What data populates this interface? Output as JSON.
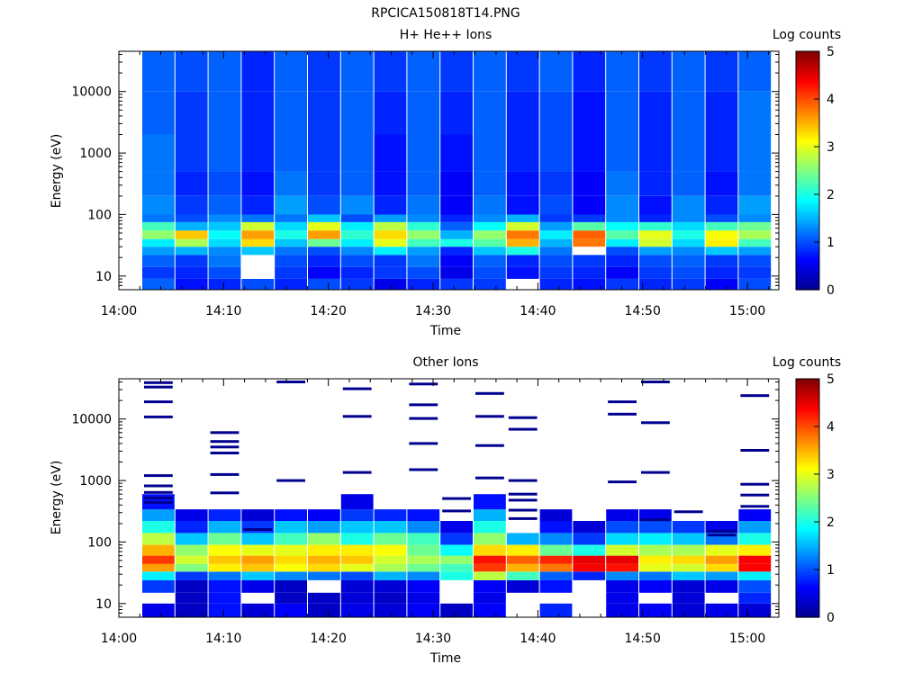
{
  "page_title": "RPCICA150818T14.PNG",
  "colormap": [
    "#00008f",
    "#0000ff",
    "#0080ff",
    "#00ffff",
    "#80ff80",
    "#ffff00",
    "#ff8000",
    "#ff0000",
    "#800000"
  ],
  "chart_data": [
    {
      "type": "heatmap",
      "title": "H+ He++ Ions",
      "xlabel": "Time",
      "ylabel": "Energy (eV)",
      "yscale": "log",
      "xlim": [
        "14:00",
        "15:03"
      ],
      "ylim": [
        6,
        45000
      ],
      "x_ticks": [
        "14:00",
        "14:10",
        "14:20",
        "14:30",
        "14:40",
        "14:50",
        "15:00"
      ],
      "y_ticks": [
        "10",
        "100",
        "1000",
        "10000"
      ],
      "colorbar": {
        "label": "Log counts",
        "ticks": [
          "0",
          "1",
          "2",
          "3",
          "4",
          "5"
        ],
        "range": [
          0,
          5
        ]
      },
      "time_bins": [
        "14:02:15",
        "14:05:30",
        "14:08:45",
        "14:12:00",
        "14:15:15",
        "14:18:30",
        "14:21:45",
        "14:25:00",
        "14:28:15",
        "14:31:30",
        "14:34:45",
        "14:38:00",
        "14:41:15",
        "14:44:30",
        "14:47:45",
        "14:51:00",
        "14:54:15",
        "14:57:30",
        "15:00:45"
      ],
      "energy_bands_eV": [
        {
          "energy": [
            6,
            9
          ],
          "values": [
            1.1,
            0.7,
            0.8,
            1.0,
            0.8,
            1.0,
            0.9,
            0.5,
            0.8,
            0.9,
            0.9,
            null,
            0.8,
            0.7,
            0.9,
            0.8,
            0.9,
            0.6,
            1.0
          ]
        },
        {
          "energy": [
            9,
            14
          ],
          "values": [
            0.9,
            0.8,
            1.0,
            null,
            0.9,
            0.6,
            0.8,
            0.9,
            1.0,
            0.5,
            1.0,
            0.7,
            0.9,
            0.8,
            0.6,
            0.9,
            1.0,
            0.8,
            0.9
          ]
        },
        {
          "energy": [
            14,
            22
          ],
          "values": [
            1.1,
            0.9,
            1.2,
            null,
            1.0,
            0.8,
            1.0,
            0.9,
            1.2,
            0.6,
            1.1,
            0.8,
            1.0,
            0.9,
            0.8,
            1.0,
            1.1,
            0.9,
            1.0
          ]
        },
        {
          "energy": [
            22,
            30
          ],
          "values": [
            1.4,
            1.5,
            1.3,
            1.6,
            1.2,
            1.0,
            1.3,
            1.8,
            1.4,
            0.8,
            1.6,
            2.0,
            1.2,
            null,
            1.0,
            1.4,
            1.3,
            1.6,
            1.4
          ]
        },
        {
          "energy": [
            30,
            40
          ],
          "values": [
            1.8,
            2.7,
            1.7,
            3.3,
            1.6,
            2.4,
            1.8,
            3.0,
            2.2,
            2.0,
            2.3,
            3.5,
            1.5,
            3.8,
            1.8,
            2.9,
            1.7,
            3.2,
            2.2
          ]
        },
        {
          "energy": [
            40,
            55
          ],
          "values": [
            2.6,
            3.4,
            1.9,
            3.6,
            2.0,
            3.6,
            2.1,
            3.3,
            2.6,
            1.5,
            2.6,
            3.8,
            1.8,
            3.9,
            2.3,
            3.0,
            2.0,
            3.1,
            2.7
          ]
        },
        {
          "energy": [
            55,
            75
          ],
          "values": [
            2.2,
            1.5,
            1.6,
            2.9,
            1.7,
            3.0,
            1.8,
            2.8,
            2.1,
            1.1,
            1.9,
            2.9,
            1.4,
            2.3,
            1.9,
            2.1,
            1.7,
            2.2,
            2.4
          ]
        },
        {
          "energy": [
            75,
            100
          ],
          "values": [
            1.2,
            1.0,
            1.3,
            1.2,
            1.2,
            1.6,
            1.0,
            1.4,
            1.3,
            0.8,
            1.3,
            1.5,
            0.9,
            0.9,
            1.3,
            0.8,
            1.3,
            1.0,
            1.3
          ]
        },
        {
          "energy": [
            100,
            200
          ],
          "values": [
            1.3,
            0.9,
            1.1,
            0.8,
            1.4,
            1.0,
            1.3,
            0.8,
            1.2,
            0.6,
            1.2,
            0.7,
            1.0,
            0.6,
            1.3,
            0.7,
            1.3,
            0.8,
            1.4
          ]
        },
        {
          "energy": [
            200,
            500
          ],
          "values": [
            1.2,
            0.8,
            1.0,
            0.7,
            1.2,
            0.9,
            1.1,
            0.7,
            1.1,
            0.6,
            1.1,
            0.7,
            0.9,
            0.6,
            1.2,
            0.8,
            1.1,
            0.7,
            1.2
          ]
        },
        {
          "energy": [
            500,
            2000
          ],
          "values": [
            1.2,
            0.9,
            1.1,
            0.8,
            1.1,
            0.9,
            1.1,
            0.7,
            1.1,
            0.7,
            1.1,
            0.8,
            1.0,
            0.7,
            1.1,
            0.8,
            1.1,
            0.8,
            1.2
          ]
        },
        {
          "energy": [
            2000,
            10000
          ],
          "values": [
            1.1,
            0.9,
            1.1,
            0.8,
            1.1,
            0.9,
            1.1,
            0.8,
            1.1,
            0.8,
            1.1,
            0.8,
            1.0,
            0.7,
            1.1,
            0.8,
            1.1,
            0.8,
            1.2
          ]
        },
        {
          "energy": [
            10000,
            45000
          ],
          "values": [
            1.1,
            1.0,
            1.1,
            0.8,
            1.1,
            0.9,
            1.1,
            0.9,
            1.1,
            0.9,
            1.1,
            0.9,
            1.1,
            0.8,
            1.1,
            0.9,
            1.1,
            0.9,
            1.1
          ]
        }
      ]
    },
    {
      "type": "heatmap",
      "title": "Other Ions",
      "xlabel": "Time",
      "ylabel": "Energy (eV)",
      "yscale": "log",
      "xlim": [
        "14:00",
        "15:03"
      ],
      "ylim": [
        6,
        45000
      ],
      "x_ticks": [
        "14:00",
        "14:10",
        "14:20",
        "14:30",
        "14:40",
        "14:50",
        "15:00"
      ],
      "y_ticks": [
        "10",
        "100",
        "1000",
        "10000"
      ],
      "colorbar": {
        "label": "Log counts",
        "ticks": [
          "0",
          "1",
          "2",
          "3",
          "4",
          "5"
        ],
        "range": [
          0,
          5
        ]
      },
      "time_bins": [
        "14:02:15",
        "14:05:30",
        "14:08:45",
        "14:12:00",
        "14:15:15",
        "14:18:30",
        "14:21:45",
        "14:25:00",
        "14:28:15",
        "14:31:30",
        "14:34:45",
        "14:38:00",
        "14:41:15",
        "14:44:30",
        "14:47:45",
        "14:51:00",
        "14:54:15",
        "14:57:30",
        "15:00:45"
      ],
      "energy_bands_eV": [
        {
          "energy": [
            6,
            10
          ],
          "values": [
            0.5,
            0.3,
            0.7,
            0.4,
            0.6,
            0.3,
            0.5,
            0.4,
            0.6,
            0.3,
            0.6,
            null,
            0.8,
            null,
            0.5,
            0.6,
            0.4,
            0.5,
            0.4
          ]
        },
        {
          "energy": [
            10,
            15
          ],
          "values": [
            null,
            0.3,
            0.7,
            null,
            0.3,
            0.3,
            0.4,
            0.3,
            0.5,
            null,
            0.5,
            null,
            null,
            null,
            0.5,
            null,
            0.4,
            null,
            0.8
          ]
        },
        {
          "energy": [
            15,
            24
          ],
          "values": [
            0.9,
            0.3,
            0.7,
            0.5,
            0.3,
            null,
            0.4,
            0.4,
            0.6,
            null,
            0.6,
            0.4,
            0.7,
            null,
            0.5,
            0.6,
            0.4,
            0.5,
            1.0
          ]
        },
        {
          "energy": [
            24,
            33
          ],
          "values": [
            1.8,
            0.9,
            1.2,
            1.6,
            1.3,
            1.2,
            1.0,
            1.5,
            1.3,
            2.0,
            2.8,
            2.2,
            1.1,
            0.8,
            1.3,
            1.2,
            1.6,
            1.4,
            1.8
          ]
        },
        {
          "energy": [
            33,
            44
          ],
          "values": [
            3.6,
            2.5,
            3.2,
            3.4,
            3.1,
            3.3,
            3.0,
            2.7,
            2.4,
            2.2,
            4.1,
            3.5,
            3.8,
            4.4,
            4.3,
            3.0,
            2.9,
            3.3,
            4.4
          ]
        },
        {
          "energy": [
            44,
            60
          ],
          "values": [
            4.1,
            2.9,
            3.4,
            3.6,
            3.3,
            3.5,
            3.4,
            2.9,
            2.7,
            2.6,
            4.3,
            3.9,
            4.2,
            4.5,
            4.5,
            3.2,
            3.3,
            3.6,
            4.4
          ]
        },
        {
          "energy": [
            60,
            90
          ],
          "values": [
            3.5,
            2.6,
            3.1,
            3.0,
            3.0,
            3.2,
            3.2,
            3.1,
            2.4,
            1.9,
            3.3,
            3.2,
            2.4,
            2.0,
            2.9,
            2.7,
            2.7,
            3.0,
            3.2
          ]
        },
        {
          "energy": [
            90,
            140
          ],
          "values": [
            2.8,
            1.6,
            2.4,
            1.6,
            2.2,
            2.6,
            2.0,
            2.4,
            2.2,
            0.9,
            2.6,
            1.5,
            1.3,
            0.9,
            1.7,
            1.8,
            1.6,
            1.2,
            2.0
          ]
        },
        {
          "energy": [
            140,
            220
          ],
          "values": [
            2.0,
            0.8,
            1.5,
            0.9,
            1.6,
            1.4,
            1.6,
            1.6,
            1.3,
            0.5,
            2.0,
            null,
            0.7,
            0.4,
            1.0,
            1.0,
            0.9,
            0.5,
            1.4
          ]
        },
        {
          "energy": [
            220,
            340
          ],
          "values": [
            1.4,
            0.5,
            0.8,
            0.4,
            0.7,
            0.6,
            0.9,
            0.8,
            0.7,
            null,
            1.5,
            null,
            0.4,
            null,
            0.5,
            0.5,
            null,
            null,
            0.6
          ]
        },
        {
          "energy": [
            340,
            600
          ],
          "values": [
            0.7,
            null,
            null,
            null,
            null,
            null,
            0.5,
            null,
            null,
            null,
            0.7,
            null,
            null,
            null,
            null,
            null,
            null,
            null,
            null
          ]
        }
      ],
      "sparse_lines_eV": [
        {
          "bin": 0,
          "energy": [
            820,
            640,
            520,
            440,
            1200,
            10800,
            19000,
            33000,
            39000
          ]
        },
        {
          "bin": 2,
          "energy": [
            630,
            1250,
            2800,
            3500,
            4300,
            6000
          ]
        },
        {
          "bin": 3,
          "energy": [
            160
          ]
        },
        {
          "bin": 4,
          "energy": [
            1000,
            40000
          ]
        },
        {
          "bin": 6,
          "energy": [
            1350,
            11000,
            31000
          ]
        },
        {
          "bin": 8,
          "energy": [
            1500,
            4000,
            10200,
            17000,
            37000
          ]
        },
        {
          "bin": 9,
          "energy": [
            320,
            510
          ]
        },
        {
          "bin": 10,
          "energy": [
            1100,
            3700,
            11000,
            26000
          ]
        },
        {
          "bin": 11,
          "energy": [
            240,
            330,
            480,
            600,
            1000,
            6800,
            10500
          ]
        },
        {
          "bin": 14,
          "energy": [
            950,
            12000,
            19000
          ]
        },
        {
          "bin": 15,
          "energy": [
            230,
            1350,
            8700,
            40000
          ]
        },
        {
          "bin": 16,
          "energy": [
            310
          ]
        },
        {
          "bin": 17,
          "energy": [
            130,
            150
          ]
        },
        {
          "bin": 18,
          "energy": [
            380,
            580,
            870,
            3100,
            24000
          ]
        }
      ]
    }
  ]
}
